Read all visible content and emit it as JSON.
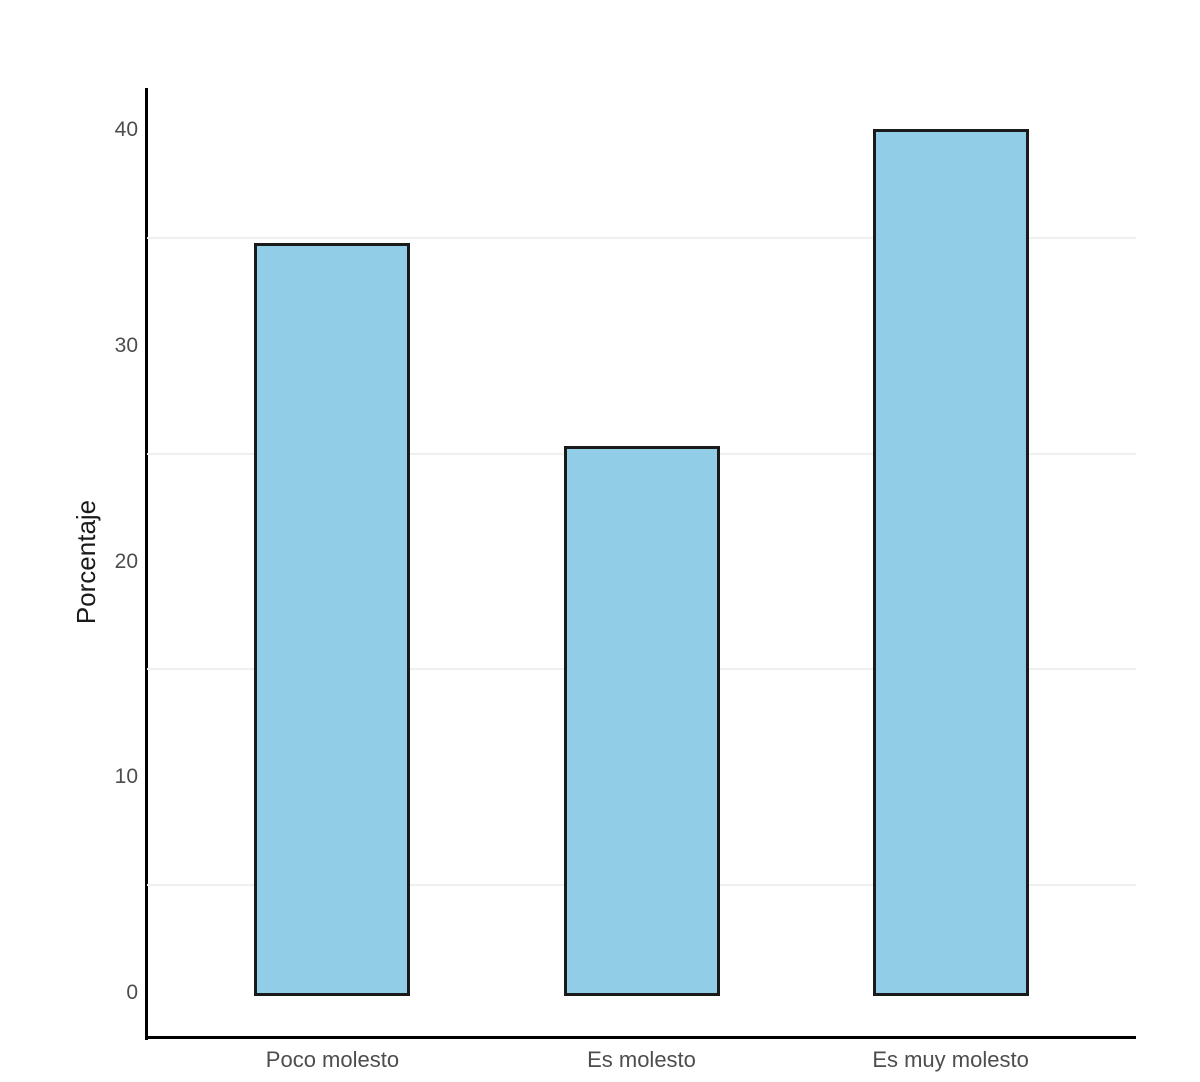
{
  "chart_data": {
    "type": "bar",
    "title": "",
    "categories": [
      "Poco molesto",
      "Es molesto",
      "Es muy molesto"
    ],
    "values": [
      34.7,
      25.3,
      40
    ],
    "xlabel": "",
    "ylabel": "Porcentaje",
    "ylim": [
      0,
      40
    ],
    "yticks": [
      0,
      10,
      20,
      30,
      40
    ],
    "minor_gridlines": [
      5,
      15,
      25,
      35
    ],
    "legend_position": "none",
    "grid": "minor-horizontal-only",
    "colors": {
      "bar_fill": "#92cde8",
      "bar_border": "#1a1a1a",
      "axis_line": "#000000",
      "tick_label": "#4d4d4d",
      "axis_title": "#1a1a1a",
      "gridline": "#f0f0f0",
      "background": "#ffffff"
    }
  }
}
